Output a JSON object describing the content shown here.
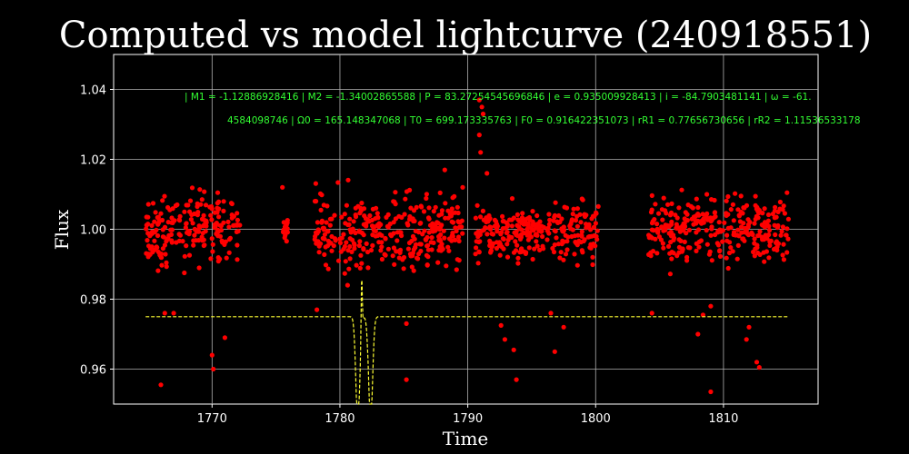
{
  "chart_data": {
    "type": "scatter",
    "title": "Computed vs model lightcurve (240918551)",
    "xlabel": "Time",
    "ylabel": "Flux",
    "xlim": [
      1762.3,
      1817.4
    ],
    "ylim": [
      0.95,
      1.05
    ],
    "x_ticks": [
      1770,
      1780,
      1790,
      1800,
      1810
    ],
    "y_ticks": [
      0.96,
      0.98,
      1.0,
      1.02,
      1.04
    ],
    "x_tick_labels": [
      "1770",
      "1780",
      "1790",
      "1800",
      "1810"
    ],
    "y_tick_labels": [
      "0.96",
      "0.98",
      "1.00",
      "1.02",
      "1.04"
    ],
    "grid": true,
    "annotations": [
      "| M1 = -1.12886928416 | M2 = -1.34002865588 | P = 83.27254545696846 | e = 0.935009928413 | i = -84.7903481141 | ω = -61.",
      "4584098746 | Ω0 = 165.148347068 | T0 = 699.173335763 | F0 = 0.916422351073 | rR1 = 0.77656730656 | rR2 = 1.11536533178"
    ],
    "colors": {
      "data": "#ff0000",
      "model": "#ffff33",
      "annotation": "#33ff33",
      "background": "#000000",
      "axes": "#ffffff"
    },
    "series": [
      {
        "kind": "points",
        "color": "#ff0000",
        "segments": [
          {
            "x_start": 1764.8,
            "x_end": 1772.2,
            "center": 1.0,
            "spread": 0.012
          },
          {
            "x_start": 1775.5,
            "x_end": 1776.0,
            "center": 1.0,
            "spread": 0.006
          },
          {
            "x_start": 1778.0,
            "x_end": 1789.6,
            "center": 1.0,
            "spread": 0.013
          },
          {
            "x_start": 1790.5,
            "x_end": 1800.3,
            "center": 0.999,
            "spread": 0.01
          },
          {
            "x_start": 1804.1,
            "x_end": 1815.1,
            "center": 1.0,
            "spread": 0.012
          }
        ],
        "points": [
          [
            1766.0,
            0.9555
          ],
          [
            1766.3,
            0.976
          ],
          [
            1767.0,
            0.976
          ],
          [
            1770.0,
            0.964
          ],
          [
            1770.1,
            0.96
          ],
          [
            1771.0,
            0.969
          ],
          [
            1778.2,
            0.977
          ],
          [
            1780.6,
            0.984
          ],
          [
            1782.2,
            0.989
          ],
          [
            1785.2,
            0.973
          ],
          [
            1785.2,
            0.957
          ],
          [
            1792.6,
            0.9725
          ],
          [
            1792.9,
            0.9685
          ],
          [
            1793.6,
            0.9655
          ],
          [
            1793.8,
            0.957
          ],
          [
            1796.5,
            0.976
          ],
          [
            1796.8,
            0.965
          ],
          [
            1797.5,
            0.972
          ],
          [
            1804.4,
            0.976
          ],
          [
            1808.0,
            0.97
          ],
          [
            1808.4,
            0.9755
          ],
          [
            1809.0,
            0.978
          ],
          [
            1809.0,
            0.9535
          ],
          [
            1811.8,
            0.9685
          ],
          [
            1812.0,
            0.972
          ],
          [
            1812.6,
            0.962
          ],
          [
            1812.8,
            0.9605
          ],
          [
            1790.9,
            1.037
          ],
          [
            1791.1,
            1.035
          ],
          [
            1791.2,
            1.033
          ],
          [
            1790.9,
            1.027
          ],
          [
            1791.0,
            1.022
          ],
          [
            1791.5,
            1.016
          ],
          [
            1775.5,
            1.012
          ],
          [
            1788.2,
            1.017
          ],
          [
            1789.6,
            1.012
          ]
        ]
      },
      {
        "kind": "line",
        "color": "#ffff33",
        "style": "dashed",
        "baseline": 0.975,
        "x_range": [
          1764.8,
          1815.1
        ],
        "dip1": {
          "center": 1781.4,
          "depth_to": 0.95
        },
        "dip2": {
          "center": 1782.4,
          "depth_to": 0.95
        },
        "spike": {
          "center": 1781.7,
          "peak": 0.9915
        }
      }
    ]
  }
}
